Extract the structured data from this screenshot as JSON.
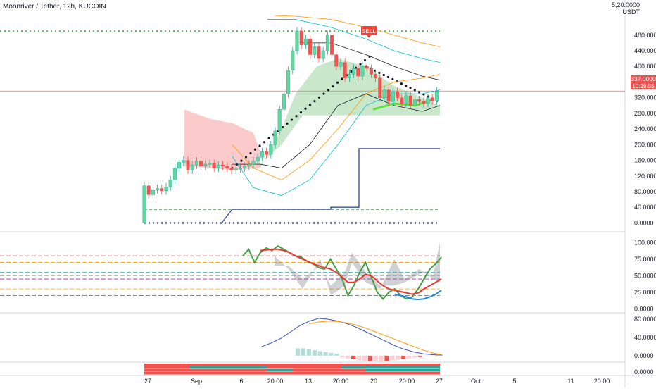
{
  "header": {
    "title": "Moonriver / Tether, 12h, KUCOIN"
  },
  "scale": {
    "currency": "USDT",
    "top_label": "5,20.0000"
  },
  "price_badge": {
    "price": "337.0000",
    "countdown": "10:29:55"
  },
  "signal": {
    "label": "SELL"
  },
  "x_axis": {
    "labels": [
      "27",
      "Sep",
      "6",
      "20:00",
      "13",
      "20:00",
      "20",
      "20:00",
      "27",
      "Oct",
      "5",
      "11",
      "20:00"
    ]
  },
  "chart_data": [
    {
      "type": "candlestick",
      "title": "Moonriver / Tether, 12h, KUCOIN",
      "ylabel": "USDT",
      "ylim": [
        -10,
        530
      ],
      "y_ticks": [
        "480.0000",
        "440.0000",
        "400.0000",
        "360.0000",
        "320.0000",
        "280.0000",
        "240.0000",
        "200.0000",
        "160.0000",
        "120.0000",
        "80.0000",
        "40.0000",
        "0.0000"
      ],
      "y_tick_values": [
        480,
        440,
        400,
        360,
        320,
        280,
        240,
        200,
        160,
        120,
        80,
        40,
        0
      ],
      "candles": [
        [
          0,
          95,
          0
        ],
        [
          1,
          72,
          95
        ],
        [
          2,
          85,
          72
        ],
        [
          3,
          88,
          85
        ],
        [
          4,
          82,
          88
        ],
        [
          5,
          92,
          82
        ],
        [
          6,
          110,
          92
        ],
        [
          7,
          140,
          110
        ],
        [
          8,
          155,
          140
        ],
        [
          9,
          160,
          155
        ],
        [
          10,
          135,
          160
        ],
        [
          11,
          148,
          135
        ],
        [
          12,
          158,
          148
        ],
        [
          13,
          145,
          158
        ],
        [
          14,
          150,
          145
        ],
        [
          15,
          152,
          150
        ],
        [
          16,
          140,
          152
        ],
        [
          17,
          148,
          140
        ],
        [
          18,
          145,
          148
        ],
        [
          19,
          140,
          145
        ],
        [
          20,
          135,
          140
        ],
        [
          21,
          138,
          135
        ],
        [
          22,
          140,
          138
        ],
        [
          23,
          145,
          140
        ],
        [
          24,
          150,
          145
        ],
        [
          25,
          158,
          150
        ],
        [
          26,
          168,
          158
        ],
        [
          27,
          182,
          168
        ],
        [
          28,
          175,
          182
        ],
        [
          29,
          200,
          175
        ],
        [
          30,
          235,
          200
        ],
        [
          31,
          290,
          235
        ],
        [
          32,
          330,
          290
        ],
        [
          33,
          390,
          330
        ],
        [
          34,
          440,
          390
        ],
        [
          35,
          490,
          440
        ],
        [
          36,
          455,
          490
        ],
        [
          37,
          470,
          455
        ],
        [
          38,
          430,
          470
        ],
        [
          39,
          450,
          430
        ],
        [
          40,
          420,
          450
        ],
        [
          41,
          440,
          420
        ],
        [
          42,
          480,
          440
        ],
        [
          43,
          430,
          480
        ],
        [
          44,
          400,
          430
        ],
        [
          45,
          410,
          400
        ],
        [
          46,
          370,
          410
        ],
        [
          47,
          380,
          370
        ],
        [
          48,
          395,
          380
        ],
        [
          49,
          375,
          395
        ],
        [
          50,
          400,
          375
        ],
        [
          51,
          395,
          400
        ],
        [
          52,
          380,
          395
        ],
        [
          53,
          370,
          380
        ],
        [
          54,
          320,
          370
        ],
        [
          55,
          340,
          320
        ],
        [
          56,
          310,
          340
        ],
        [
          57,
          335,
          310
        ],
        [
          58,
          320,
          335
        ],
        [
          59,
          305,
          320
        ],
        [
          60,
          325,
          305
        ],
        [
          61,
          300,
          325
        ],
        [
          62,
          315,
          300
        ],
        [
          63,
          310,
          315
        ],
        [
          64,
          305,
          310
        ],
        [
          65,
          320,
          305
        ],
        [
          66,
          312,
          320
        ],
        [
          67,
          337,
          312
        ]
      ],
      "sell_signal_index": 54,
      "sell_level": 490,
      "support_level": 0,
      "lower_stop": 35
    },
    {
      "type": "line",
      "ylim": [
        -5,
        110
      ],
      "y_ticks": [
        "100.0000",
        "75.0000",
        "50.0000",
        "25.0000",
        "0.0000"
      ],
      "y_tick_values": [
        100,
        75,
        50,
        25,
        0
      ],
      "series": [
        {
          "values": [
            80,
            90,
            70,
            85,
            92,
            88,
            95,
            90,
            85,
            80,
            78,
            72,
            68,
            62,
            60,
            75,
            60,
            45,
            20,
            35,
            55,
            70,
            48,
            25,
            15,
            25,
            30,
            20,
            15,
            18,
            30,
            45,
            60,
            68,
            78
          ]
        },
        {
          "values": [
            null,
            null,
            null,
            88,
            89,
            90,
            90,
            88,
            85,
            80,
            76,
            72,
            68,
            65,
            62,
            60,
            55,
            48,
            40,
            40,
            45,
            52,
            50,
            42,
            35,
            30,
            28,
            26,
            24,
            22,
            24,
            30,
            35,
            40,
            45
          ]
        },
        {
          "values": [
            null,
            null,
            null,
            null,
            null,
            null,
            null,
            null,
            null,
            null,
            null,
            null,
            null,
            null,
            null,
            null,
            null,
            null,
            null,
            null,
            null,
            null,
            null,
            null,
            null,
            null,
            22,
            20,
            18,
            15,
            14,
            15,
            18,
            22,
            28
          ]
        }
      ],
      "levels": [
        80,
        70,
        55,
        50,
        45,
        30,
        20
      ]
    },
    {
      "type": "line",
      "ylim": [
        -8,
        88
      ],
      "y_ticks": [
        "80.0000",
        "40.0000",
        "0.0000"
      ],
      "y_tick_values": [
        80,
        40,
        0
      ],
      "series": [
        {
          "values": [
            20,
            28,
            38,
            52,
            66,
            76,
            82,
            80,
            76,
            70,
            62,
            52,
            42,
            32,
            22,
            14,
            8,
            4,
            2,
            1
          ]
        },
        {
          "values": [
            null,
            null,
            null,
            null,
            null,
            70,
            74,
            76,
            75,
            72,
            67,
            60,
            52,
            44,
            36,
            28,
            20,
            12,
            6,
            2
          ]
        }
      ],
      "histogram": [
        16,
        16,
        14,
        12,
        10,
        8,
        6,
        4,
        -4,
        -6,
        -8,
        -10,
        -12,
        -12,
        -12,
        -14,
        -12,
        -10,
        -9,
        -8,
        -6,
        -4,
        -3,
        -2,
        -1,
        -1
      ]
    }
  ]
}
